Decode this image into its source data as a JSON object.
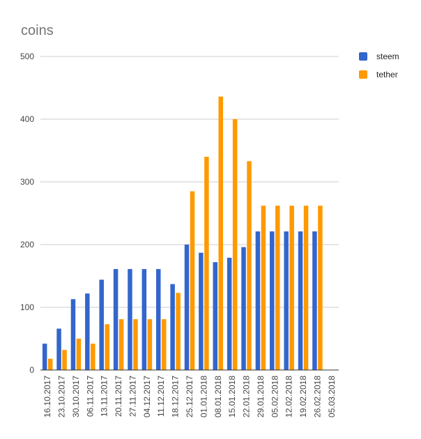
{
  "chart_data": {
    "type": "bar",
    "title": "coins",
    "xlabel": "",
    "ylabel": "",
    "ylim": [
      0,
      500
    ],
    "yticks": [
      0,
      100,
      200,
      300,
      400,
      500
    ],
    "grid": true,
    "legend_position": "top-right",
    "categories": [
      "16.10.2017",
      "23.10.2017",
      "30.10.2017",
      "06.11.2017",
      "13.11.2017",
      "20.11.2017",
      "27.11.2017",
      "04.12.2017",
      "11.12.2017",
      "18.12.2017",
      "25.12.2017",
      "01.01.2018",
      "08.01.2018",
      "15.01.2018",
      "22.01.2018",
      "29.01.2018",
      "05.02.2018",
      "12.02.2018",
      "19.02.2018",
      "26.02.2018",
      "05.03.2018"
    ],
    "series": [
      {
        "name": "steem",
        "color": "#3366cc",
        "values": [
          42,
          66,
          113,
          122,
          144,
          161,
          161,
          161,
          161,
          137,
          200,
          187,
          172,
          179,
          196,
          221,
          221,
          221,
          221,
          221,
          null
        ]
      },
      {
        "name": "tether",
        "color": "#ff9900",
        "values": [
          18,
          32,
          50,
          42,
          73,
          81,
          81,
          81,
          81,
          123,
          285,
          340,
          436,
          400,
          333,
          262,
          262,
          262,
          262,
          262,
          null
        ]
      }
    ]
  }
}
